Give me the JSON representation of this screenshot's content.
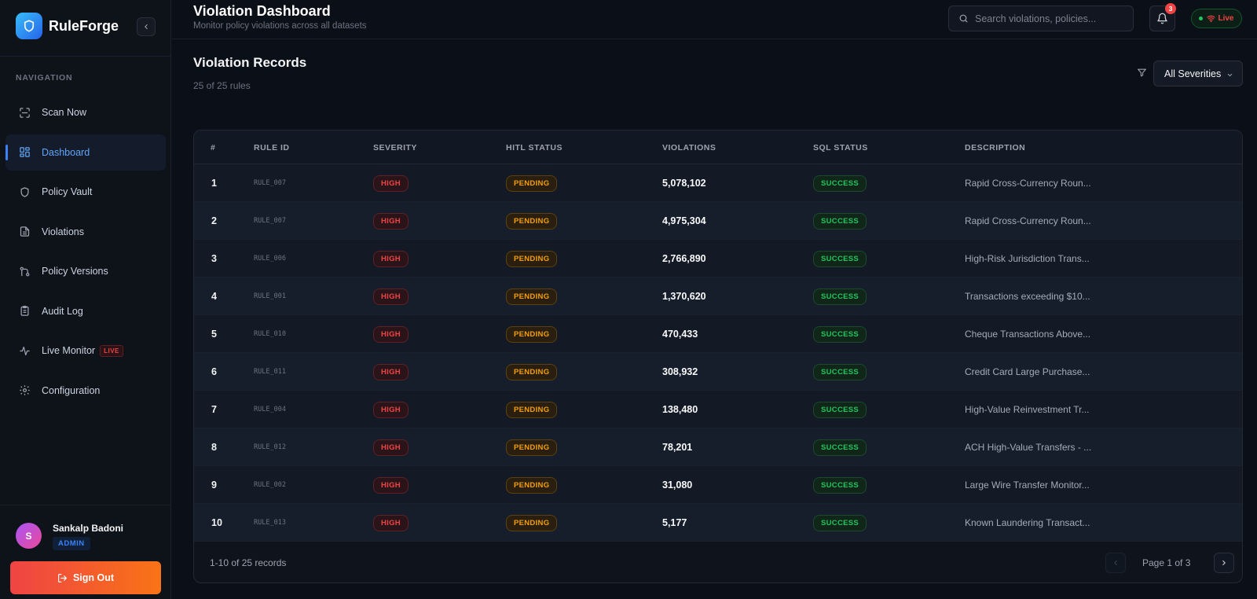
{
  "brand": {
    "name": "RuleForge"
  },
  "sidebar": {
    "section_label": "NAVIGATION",
    "items": [
      {
        "label": "Scan Now",
        "icon": "scan-icon",
        "active": false
      },
      {
        "label": "Dashboard",
        "icon": "dashboard-icon",
        "active": true
      },
      {
        "label": "Policy Vault",
        "icon": "shield-icon",
        "active": false
      },
      {
        "label": "Violations",
        "icon": "document-icon",
        "active": false
      },
      {
        "label": "Policy Versions",
        "icon": "git-branch-icon",
        "active": false
      },
      {
        "label": "Audit Log",
        "icon": "clipboard-icon",
        "active": false
      },
      {
        "label": "Live Monitor",
        "icon": "activity-icon",
        "active": false,
        "tag": "LIVE"
      },
      {
        "label": "Configuration",
        "icon": "gear-icon",
        "active": false
      }
    ]
  },
  "user": {
    "initial": "S",
    "name": "Sankalp Badoni",
    "role": "ADMIN",
    "signout_label": "Sign Out"
  },
  "header": {
    "title": "Violation Dashboard",
    "subtitle": "Monitor policy violations across all datasets",
    "search_placeholder": "Search violations, policies...",
    "notification_count": "3",
    "live_label": "Live"
  },
  "section": {
    "title": "Violation Records",
    "subtitle": "25 of 25 rules",
    "severity_filter": "All Severities"
  },
  "table": {
    "columns": [
      "#",
      "RULE ID",
      "SEVERITY",
      "HITL STATUS",
      "VIOLATIONS",
      "SQL STATUS",
      "DESCRIPTION"
    ],
    "rows": [
      {
        "num": "1",
        "rule_id": "RULE_007",
        "severity": "HIGH",
        "hitl": "PENDING",
        "violations": "5,078,102",
        "sql": "SUCCESS",
        "description": "Rapid Cross-Currency Roun..."
      },
      {
        "num": "2",
        "rule_id": "RULE_007",
        "severity": "HIGH",
        "hitl": "PENDING",
        "violations": "4,975,304",
        "sql": "SUCCESS",
        "description": "Rapid Cross-Currency Roun..."
      },
      {
        "num": "3",
        "rule_id": "RULE_006",
        "severity": "HIGH",
        "hitl": "PENDING",
        "violations": "2,766,890",
        "sql": "SUCCESS",
        "description": "High-Risk Jurisdiction Trans..."
      },
      {
        "num": "4",
        "rule_id": "RULE_001",
        "severity": "HIGH",
        "hitl": "PENDING",
        "violations": "1,370,620",
        "sql": "SUCCESS",
        "description": "Transactions exceeding $10..."
      },
      {
        "num": "5",
        "rule_id": "RULE_010",
        "severity": "HIGH",
        "hitl": "PENDING",
        "violations": "470,433",
        "sql": "SUCCESS",
        "description": "Cheque Transactions Above..."
      },
      {
        "num": "6",
        "rule_id": "RULE_011",
        "severity": "HIGH",
        "hitl": "PENDING",
        "violations": "308,932",
        "sql": "SUCCESS",
        "description": "Credit Card Large Purchase..."
      },
      {
        "num": "7",
        "rule_id": "RULE_004",
        "severity": "HIGH",
        "hitl": "PENDING",
        "violations": "138,480",
        "sql": "SUCCESS",
        "description": "High-Value Reinvestment Tr..."
      },
      {
        "num": "8",
        "rule_id": "RULE_012",
        "severity": "HIGH",
        "hitl": "PENDING",
        "violations": "78,201",
        "sql": "SUCCESS",
        "description": "ACH High-Value Transfers - ..."
      },
      {
        "num": "9",
        "rule_id": "RULE_002",
        "severity": "HIGH",
        "hitl": "PENDING",
        "violations": "31,080",
        "sql": "SUCCESS",
        "description": "Large Wire Transfer Monitor..."
      },
      {
        "num": "10",
        "rule_id": "RULE_013",
        "severity": "HIGH",
        "hitl": "PENDING",
        "violations": "5,177",
        "sql": "SUCCESS",
        "description": "Known Laundering Transact..."
      }
    ]
  },
  "pagination": {
    "records_label": "1-10 of 25 records",
    "page_label": "Page 1 of 3"
  },
  "colors": {
    "accent": "#3b82f6",
    "danger": "#ef4444",
    "warning": "#f59e0b",
    "success": "#22c55e"
  }
}
